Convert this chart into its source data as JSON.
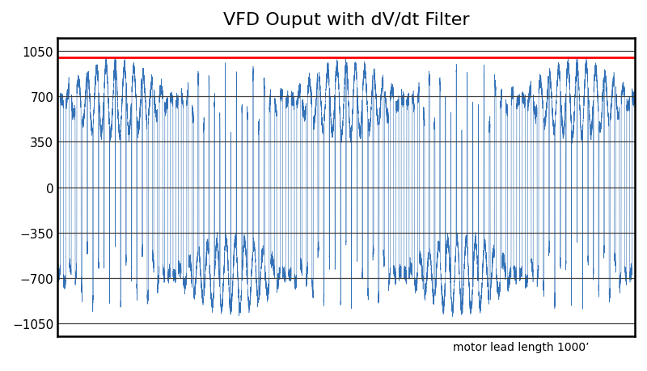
{
  "title": "VFD Ouput with dV/dt Filter",
  "xlabel": "motor lead length 1000’",
  "ylim": [
    -1150,
    1150
  ],
  "yticks": [
    -1050,
    -700,
    -350,
    0,
    350,
    700,
    1050
  ],
  "red_line_y": 1000,
  "background_color": "#ffffff",
  "line_color": "#3472b8",
  "red_color": "#ff0000",
  "title_fontsize": 16,
  "dc_bus_voltage": 680,
  "red_line_value": 1000,
  "grid_color": "#404040",
  "spine_color": "#000000"
}
